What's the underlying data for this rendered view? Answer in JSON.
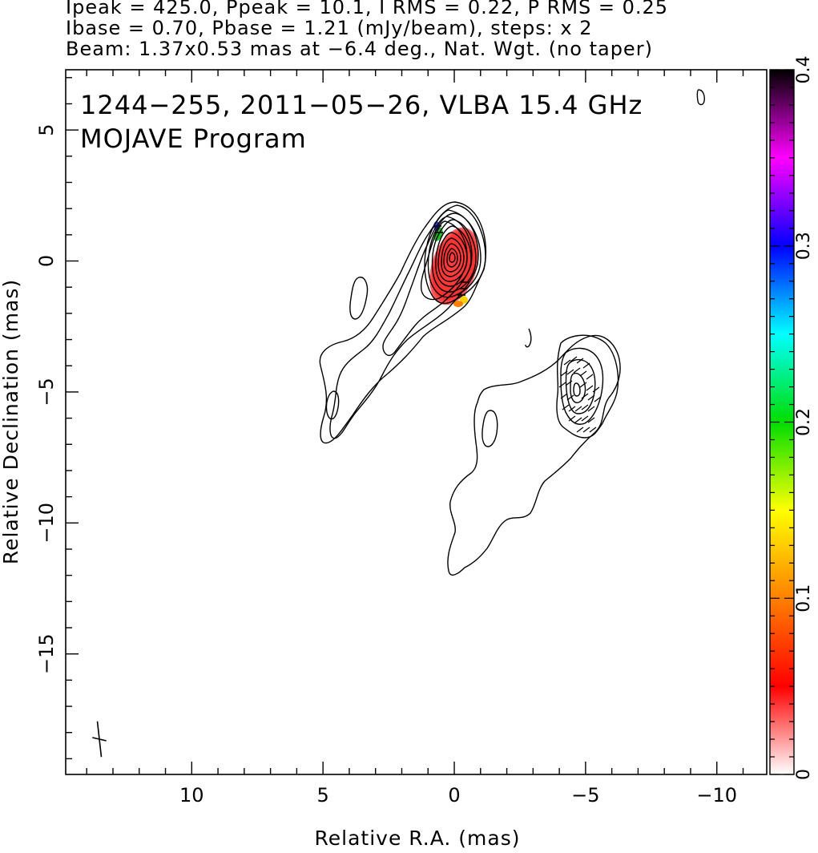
{
  "header": {
    "line1": "Ipeak = 425.0, Ppeak = 10.1, I RMS = 0.22, P RMS = 0.25",
    "line2": "Ibase = 0.70, Pbase = 1.21 (mJy/beam), steps: x 2",
    "line3": "Beam: 1.37x0.53 mas at −6.4 deg., Nat. Wgt. (no taper)"
  },
  "plot": {
    "source_line": "1244−255, 2011−05−26, VLBA 15.4 GHz",
    "program_line": "MOJAVE Program"
  },
  "chart_data": {
    "type": "heatmap",
    "xlabel": "Relative R.A. (mas)",
    "ylabel": "Relative Declination (mas)",
    "xlim": [
      14.8,
      -11.9
    ],
    "ylim": [
      -19.6,
      7.3
    ],
    "x_ticks": [
      10,
      5,
      0,
      -5,
      -10
    ],
    "x_tick_labels": [
      "10",
      "5",
      "0",
      "−5",
      "−10"
    ],
    "y_ticks": [
      5,
      0,
      -5,
      -10,
      -15
    ],
    "y_tick_labels": [
      "5",
      "0",
      "−5",
      "−10",
      "−15"
    ],
    "colorbar": {
      "range": [
        0,
        0.4
      ],
      "ticks": [
        0,
        0.1,
        0.2,
        0.3,
        0.4
      ],
      "tick_labels": [
        "0",
        "0.1",
        "0.2",
        "0.3",
        "0.4"
      ],
      "colors": [
        "#ffffff",
        "#ff0000",
        "#ff8000",
        "#ffff00",
        "#00dd00",
        "#00ffff",
        "#0000ff",
        "#ff00ff",
        "#000000"
      ]
    },
    "intensity_contours_mJy_per_beam": [
      0.7,
      1.4,
      2.8,
      5.6,
      11.2,
      22.4,
      44.8,
      89.6,
      179.2,
      358.4
    ],
    "core_position_mas": [
      0,
      0
    ],
    "secondary_component_position_mas": [
      -4.8,
      -5.1
    ],
    "polarized_region_center_mas": [
      0.0,
      -0.2
    ],
    "beam": {
      "major_mas": 1.37,
      "minor_mas": 0.53,
      "pa_deg": -6.4
    },
    "grid": false
  }
}
